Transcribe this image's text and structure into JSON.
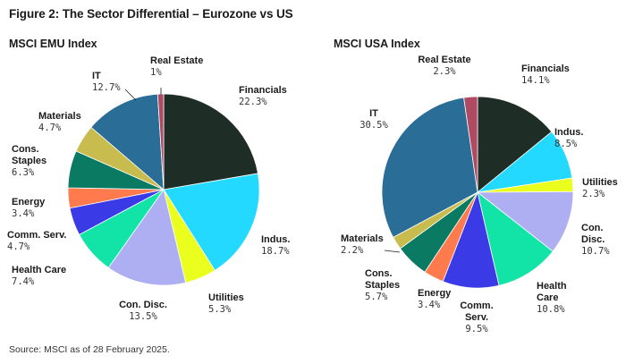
{
  "figure_title": "Figure 2: The Sector Differential – Eurozone vs US",
  "source": "Source: MSCI as of 28 February 2025.",
  "chart_data": [
    {
      "type": "pie",
      "title": "MSCI EMU Index",
      "slices": [
        {
          "name": "Financials",
          "value": 22.3,
          "label": "22.3%",
          "color": "#1e2e27"
        },
        {
          "name": "Indus.",
          "value": 18.7,
          "label": "18.7%",
          "color": "#23d9ff"
        },
        {
          "name": "Utilities",
          "value": 5.3,
          "label": "5.3%",
          "color": "#eaff1e"
        },
        {
          "name": "Con. Disc.",
          "value": 13.5,
          "label": "13.5%",
          "color": "#aeaef3"
        },
        {
          "name": "Health Care",
          "value": 7.4,
          "label": "7.4%",
          "color": "#12e3a6"
        },
        {
          "name": "Comm. Serv.",
          "value": 4.7,
          "label": "4.7%",
          "color": "#3a3ae6"
        },
        {
          "name": "Energy",
          "value": 3.4,
          "label": "3.4%",
          "color": "#ff7a4d"
        },
        {
          "name": "Cons. Staples",
          "value": 6.3,
          "label": "6.3%",
          "color": "#0a7a62"
        },
        {
          "name": "Materials",
          "value": 4.7,
          "label": "4.7%",
          "color": "#c8bc4f"
        },
        {
          "name": "IT",
          "value": 12.7,
          "label": "12.7%",
          "color": "#2a6d96"
        },
        {
          "name": "Real Estate",
          "value": 1.0,
          "label": "1%",
          "color": "#b04a62"
        }
      ]
    },
    {
      "type": "pie",
      "title": "MSCI USA Index",
      "slices": [
        {
          "name": "Financials",
          "value": 14.1,
          "label": "14.1%",
          "color": "#1e2e27"
        },
        {
          "name": "Indus.",
          "value": 8.5,
          "label": "8.5%",
          "color": "#23d9ff"
        },
        {
          "name": "Utilities",
          "value": 2.3,
          "label": "2.3%",
          "color": "#eaff1e"
        },
        {
          "name": "Con. Disc.",
          "value": 10.7,
          "label": "10.7%",
          "color": "#aeaef3"
        },
        {
          "name": "Health Care",
          "value": 10.8,
          "label": "10.8%",
          "color": "#12e3a6"
        },
        {
          "name": "Comm. Serv.",
          "value": 9.5,
          "label": "9.5%",
          "color": "#3a3ae6"
        },
        {
          "name": "Energy",
          "value": 3.4,
          "label": "3.4%",
          "color": "#ff7a4d"
        },
        {
          "name": "Cons. Staples",
          "value": 5.7,
          "label": "5.7%",
          "color": "#0a7a62"
        },
        {
          "name": "Materials",
          "value": 2.2,
          "label": "2.2%",
          "color": "#c8bc4f"
        },
        {
          "name": "IT",
          "value": 30.5,
          "label": "30.5%",
          "color": "#2a6d96"
        },
        {
          "name": "Real Estate",
          "value": 2.3,
          "label": "2.3%",
          "color": "#b04a62"
        }
      ]
    }
  ]
}
